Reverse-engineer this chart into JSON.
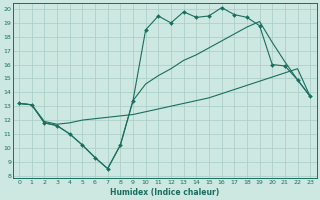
{
  "xlabel": "Humidex (Indice chaleur)",
  "xlim": [
    -0.5,
    23.5
  ],
  "ylim": [
    7.8,
    20.4
  ],
  "xticks": [
    0,
    1,
    2,
    3,
    4,
    5,
    6,
    7,
    8,
    9,
    10,
    11,
    12,
    13,
    14,
    15,
    16,
    17,
    18,
    19,
    20,
    21,
    22,
    23
  ],
  "yticks": [
    8,
    9,
    10,
    11,
    12,
    13,
    14,
    15,
    16,
    17,
    18,
    19,
    20
  ],
  "bg_color": "#cce8e0",
  "line_color": "#1a6e60",
  "grid_color": "#a8ccc4",
  "line1_x": [
    0,
    1,
    2,
    3,
    4,
    5,
    6,
    7,
    8,
    9,
    10,
    11,
    12,
    13,
    14,
    15,
    16,
    17,
    18,
    19,
    20,
    21,
    22,
    23
  ],
  "line1_y": [
    13.2,
    13.1,
    11.8,
    11.6,
    11.0,
    10.2,
    9.3,
    8.5,
    10.2,
    13.4,
    18.5,
    19.5,
    19.0,
    19.8,
    19.4,
    19.5,
    20.1,
    19.6,
    19.4,
    18.8,
    16.0,
    15.9,
    14.9,
    13.7
  ],
  "line2_x": [
    0,
    1,
    2,
    3,
    4,
    5,
    6,
    7,
    8,
    9,
    10,
    11,
    12,
    13,
    14,
    15,
    16,
    17,
    18,
    19,
    20,
    21,
    22,
    23
  ],
  "line2_y": [
    13.2,
    13.1,
    11.9,
    11.7,
    11.8,
    12.0,
    12.1,
    12.2,
    12.3,
    12.4,
    12.6,
    12.8,
    13.0,
    13.2,
    13.4,
    13.6,
    13.9,
    14.2,
    14.5,
    14.8,
    15.1,
    15.4,
    15.7,
    13.7
  ],
  "line3_x": [
    0,
    1,
    2,
    3,
    4,
    5,
    6,
    7,
    8,
    9,
    10,
    11,
    12,
    13,
    14,
    15,
    16,
    17,
    18,
    19,
    20,
    21,
    22,
    23
  ],
  "line3_y": [
    13.2,
    13.1,
    11.8,
    11.6,
    11.0,
    10.2,
    9.3,
    8.5,
    10.2,
    13.4,
    14.6,
    15.2,
    15.7,
    16.3,
    16.7,
    17.2,
    17.7,
    18.2,
    18.7,
    19.1,
    17.6,
    16.2,
    14.9,
    13.7
  ]
}
